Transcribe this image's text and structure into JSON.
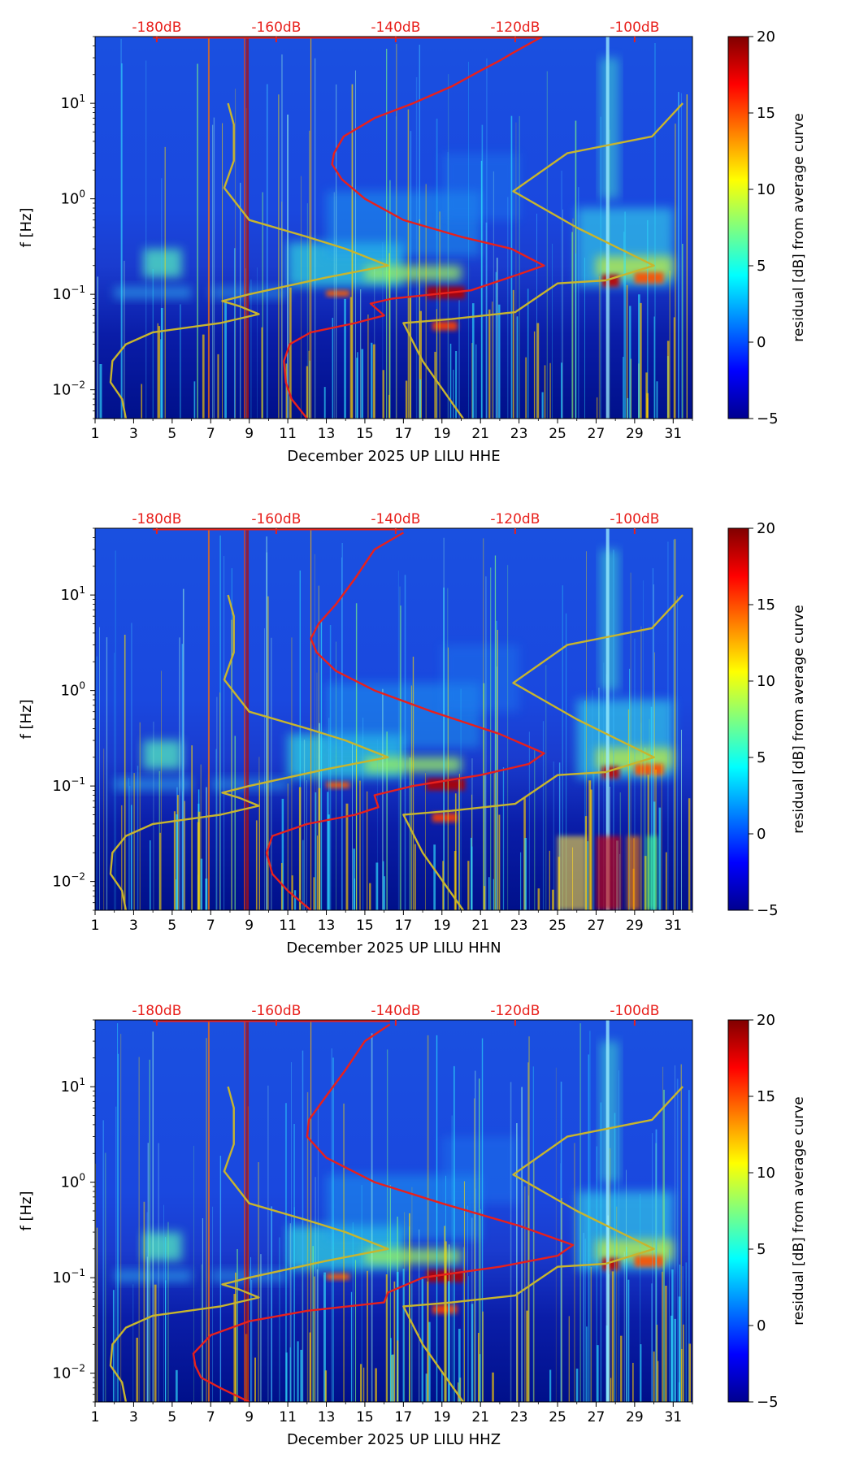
{
  "chart_data": [
    {
      "type": "heatmap",
      "title": "",
      "xlabel": "December 2025 UP LILU  HHE",
      "ylabel": "f [Hz]",
      "x_ticks": [
        "1",
        "3",
        "5",
        "7",
        "9",
        "11",
        "13",
        "15",
        "17",
        "19",
        "21",
        "23",
        "25",
        "27",
        "29",
        "31"
      ],
      "x_range": [
        1,
        32
      ],
      "y_scale": "log",
      "y_range": [
        0.005,
        50
      ],
      "y_ticks": [
        {
          "base": "10",
          "exp": "1",
          "value": 10
        },
        {
          "base": "10",
          "exp": "0",
          "value": 1
        },
        {
          "base": "10",
          "exp": "−1",
          "value": 0.1
        },
        {
          "base": "10",
          "exp": "−2",
          "value": 0.01
        }
      ],
      "top_ticks": [
        "-180dB",
        "-160dB",
        "-140dB",
        "-120dB",
        "-100dB"
      ],
      "top_tick_days": [
        4.2,
        10.4,
        16.6,
        22.8,
        29.0
      ],
      "colorbar": {
        "label": "residual [dB] from average curve",
        "min": -5,
        "max": 20,
        "ticks": [
          "20",
          "15",
          "10",
          "5",
          "0",
          "−5"
        ],
        "tick_values": [
          20,
          15,
          10,
          5,
          0,
          -5
        ]
      },
      "series": [
        {
          "name": "red average PSD curve",
          "color": "#e8201c",
          "points": [
            [
              12.0,
              0.005
            ],
            [
              11.2,
              0.008
            ],
            [
              10.9,
              0.012
            ],
            [
              10.8,
              0.02
            ],
            [
              11.1,
              0.03
            ],
            [
              12.2,
              0.04
            ],
            [
              14.5,
              0.05
            ],
            [
              16.0,
              0.06
            ],
            [
              15.3,
              0.08
            ],
            [
              16.4,
              0.09
            ],
            [
              20.5,
              0.11
            ],
            [
              22.5,
              0.15
            ],
            [
              24.3,
              0.2
            ],
            [
              22.6,
              0.3
            ],
            [
              20.0,
              0.4
            ],
            [
              17.0,
              0.6
            ],
            [
              15.0,
              1.0
            ],
            [
              13.8,
              1.6
            ],
            [
              13.3,
              2.3
            ],
            [
              13.4,
              3.0
            ],
            [
              13.9,
              4.5
            ],
            [
              15.5,
              7.0
            ],
            [
              17.5,
              10.0
            ],
            [
              19.5,
              15.0
            ],
            [
              21.0,
              22.0
            ],
            [
              22.0,
              28.0
            ],
            [
              22.6,
              33.0
            ],
            [
              24.2,
              50.0
            ]
          ]
        },
        {
          "name": "yellow noise model curve (left)",
          "color": "#c8b52d",
          "points": [
            [
              2.6,
              0.005
            ],
            [
              2.4,
              0.008
            ],
            [
              1.8,
              0.012
            ],
            [
              1.9,
              0.02
            ],
            [
              2.6,
              0.03
            ],
            [
              4.0,
              0.04
            ],
            [
              7.5,
              0.05
            ],
            [
              9.5,
              0.062
            ],
            [
              8.5,
              0.075
            ],
            [
              7.6,
              0.085
            ],
            [
              9.0,
              0.1
            ],
            [
              13.0,
              0.15
            ],
            [
              16.2,
              0.2
            ],
            [
              14.0,
              0.3
            ],
            [
              12.0,
              0.4
            ],
            [
              9.0,
              0.6
            ],
            [
              7.7,
              1.3
            ],
            [
              8.2,
              2.5
            ],
            [
              8.2,
              6.0
            ],
            [
              7.9,
              10.0
            ]
          ]
        },
        {
          "name": "yellow noise model curve (right)",
          "color": "#c8b52d",
          "points": [
            [
              20.1,
              0.005
            ],
            [
              18.0,
              0.02
            ],
            [
              17.0,
              0.05
            ],
            [
              19.5,
              0.055
            ],
            [
              22.8,
              0.065
            ],
            [
              25.0,
              0.13
            ],
            [
              27.5,
              0.14
            ],
            [
              30.0,
              0.2
            ],
            [
              26.0,
              0.5
            ],
            [
              22.7,
              1.2
            ],
            [
              25.5,
              3.0
            ],
            [
              29.9,
              4.5
            ],
            [
              31.5,
              10.0
            ]
          ]
        }
      ]
    },
    {
      "type": "heatmap",
      "title": "",
      "xlabel": "December 2025 UP LILU  HHN",
      "ylabel": "f [Hz]",
      "x_ticks": [
        "1",
        "3",
        "5",
        "7",
        "9",
        "11",
        "13",
        "15",
        "17",
        "19",
        "21",
        "23",
        "25",
        "27",
        "29",
        "31"
      ],
      "x_range": [
        1,
        32
      ],
      "y_scale": "log",
      "y_range": [
        0.005,
        50
      ],
      "y_ticks": [
        {
          "base": "10",
          "exp": "1",
          "value": 10
        },
        {
          "base": "10",
          "exp": "0",
          "value": 1
        },
        {
          "base": "10",
          "exp": "−1",
          "value": 0.1
        },
        {
          "base": "10",
          "exp": "−2",
          "value": 0.01
        }
      ],
      "top_ticks": [
        "-180dB",
        "-160dB",
        "-140dB",
        "-120dB",
        "-100dB"
      ],
      "top_tick_days": [
        4.2,
        10.4,
        16.6,
        22.8,
        29.0
      ],
      "colorbar": {
        "label": "residual [dB] from average curve",
        "min": -5,
        "max": 20,
        "ticks": [
          "20",
          "15",
          "10",
          "5",
          "0",
          "−5"
        ],
        "tick_values": [
          20,
          15,
          10,
          5,
          0,
          -5
        ]
      },
      "series": [
        {
          "name": "red average PSD curve",
          "color": "#e8201c",
          "points": [
            [
              12.2,
              0.005
            ],
            [
              11.0,
              0.008
            ],
            [
              10.2,
              0.012
            ],
            [
              9.9,
              0.02
            ],
            [
              10.2,
              0.03
            ],
            [
              12.0,
              0.04
            ],
            [
              14.5,
              0.05
            ],
            [
              15.7,
              0.06
            ],
            [
              15.5,
              0.08
            ],
            [
              17.5,
              0.1
            ],
            [
              21.0,
              0.13
            ],
            [
              23.5,
              0.17
            ],
            [
              24.3,
              0.22
            ],
            [
              22.0,
              0.35
            ],
            [
              18.5,
              0.6
            ],
            [
              15.5,
              1.0
            ],
            [
              13.5,
              1.6
            ],
            [
              12.5,
              2.5
            ],
            [
              12.2,
              3.5
            ],
            [
              12.6,
              5.0
            ],
            [
              13.5,
              8.0
            ],
            [
              14.5,
              15.0
            ],
            [
              15.5,
              30.0
            ],
            [
              17.0,
              45.0
            ]
          ]
        },
        {
          "name": "yellow noise model curve (left)",
          "color": "#c8b52d",
          "points": [
            [
              2.6,
              0.005
            ],
            [
              2.4,
              0.008
            ],
            [
              1.8,
              0.012
            ],
            [
              1.9,
              0.02
            ],
            [
              2.6,
              0.03
            ],
            [
              4.0,
              0.04
            ],
            [
              7.5,
              0.05
            ],
            [
              9.5,
              0.062
            ],
            [
              8.5,
              0.075
            ],
            [
              7.6,
              0.085
            ],
            [
              9.0,
              0.1
            ],
            [
              13.0,
              0.15
            ],
            [
              16.2,
              0.2
            ],
            [
              14.0,
              0.3
            ],
            [
              12.0,
              0.4
            ],
            [
              9.0,
              0.6
            ],
            [
              7.7,
              1.3
            ],
            [
              8.2,
              2.5
            ],
            [
              8.2,
              6.0
            ],
            [
              7.9,
              10.0
            ]
          ]
        },
        {
          "name": "yellow noise model curve (right)",
          "color": "#c8b52d",
          "points": [
            [
              20.1,
              0.005
            ],
            [
              18.0,
              0.02
            ],
            [
              17.0,
              0.05
            ],
            [
              19.5,
              0.055
            ],
            [
              22.8,
              0.065
            ],
            [
              25.0,
              0.13
            ],
            [
              27.5,
              0.14
            ],
            [
              30.0,
              0.2
            ],
            [
              26.0,
              0.5
            ],
            [
              22.7,
              1.2
            ],
            [
              25.5,
              3.0
            ],
            [
              29.9,
              4.5
            ],
            [
              31.5,
              10.0
            ]
          ]
        }
      ]
    },
    {
      "type": "heatmap",
      "title": "",
      "xlabel": "December 2025 UP LILU  HHZ",
      "ylabel": "f [Hz]",
      "x_ticks": [
        "1",
        "3",
        "5",
        "7",
        "9",
        "11",
        "13",
        "15",
        "17",
        "19",
        "21",
        "23",
        "25",
        "27",
        "29",
        "31"
      ],
      "x_range": [
        1,
        32
      ],
      "y_scale": "log",
      "y_range": [
        0.005,
        50
      ],
      "y_ticks": [
        {
          "base": "10",
          "exp": "1",
          "value": 10
        },
        {
          "base": "10",
          "exp": "0",
          "value": 1
        },
        {
          "base": "10",
          "exp": "−1",
          "value": 0.1
        },
        {
          "base": "10",
          "exp": "−2",
          "value": 0.01
        }
      ],
      "top_ticks": [
        "-180dB",
        "-160dB",
        "-140dB",
        "-120dB",
        "-100dB"
      ],
      "top_tick_days": [
        4.2,
        10.4,
        16.6,
        22.8,
        29.0
      ],
      "colorbar": {
        "label": "residual [dB] from average curve",
        "min": -5,
        "max": 20,
        "ticks": [
          "20",
          "15",
          "10",
          "5",
          "0",
          "−5"
        ],
        "tick_values": [
          20,
          15,
          10,
          5,
          0,
          -5
        ]
      },
      "series": [
        {
          "name": "red average PSD curve",
          "color": "#e8201c",
          "points": [
            [
              9.0,
              0.005
            ],
            [
              7.5,
              0.007
            ],
            [
              6.5,
              0.009
            ],
            [
              6.2,
              0.012
            ],
            [
              6.1,
              0.016
            ],
            [
              7.0,
              0.025
            ],
            [
              9.0,
              0.035
            ],
            [
              12.0,
              0.045
            ],
            [
              16.0,
              0.055
            ],
            [
              16.2,
              0.07
            ],
            [
              18.0,
              0.1
            ],
            [
              22.0,
              0.13
            ],
            [
              25.0,
              0.17
            ],
            [
              25.8,
              0.22
            ],
            [
              23.0,
              0.35
            ],
            [
              19.0,
              0.6
            ],
            [
              15.5,
              1.0
            ],
            [
              13.0,
              1.8
            ],
            [
              12.0,
              3.0
            ],
            [
              12.1,
              4.5
            ],
            [
              13.0,
              8.0
            ],
            [
              14.0,
              15.0
            ],
            [
              15.0,
              30.0
            ],
            [
              16.3,
              45.0
            ]
          ]
        },
        {
          "name": "yellow noise model curve (left)",
          "color": "#c8b52d",
          "points": [
            [
              2.6,
              0.005
            ],
            [
              2.4,
              0.008
            ],
            [
              1.8,
              0.012
            ],
            [
              1.9,
              0.02
            ],
            [
              2.6,
              0.03
            ],
            [
              4.0,
              0.04
            ],
            [
              7.5,
              0.05
            ],
            [
              9.5,
              0.062
            ],
            [
              8.5,
              0.075
            ],
            [
              7.6,
              0.085
            ],
            [
              9.0,
              0.1
            ],
            [
              13.0,
              0.15
            ],
            [
              16.2,
              0.2
            ],
            [
              14.0,
              0.3
            ],
            [
              12.0,
              0.4
            ],
            [
              9.0,
              0.6
            ],
            [
              7.7,
              1.3
            ],
            [
              8.2,
              2.5
            ],
            [
              8.2,
              6.0
            ],
            [
              7.9,
              10.0
            ]
          ]
        },
        {
          "name": "yellow noise model curve (right)",
          "color": "#c8b52d",
          "points": [
            [
              20.1,
              0.005
            ],
            [
              18.0,
              0.02
            ],
            [
              17.0,
              0.05
            ],
            [
              19.5,
              0.055
            ],
            [
              22.8,
              0.065
            ],
            [
              25.0,
              0.13
            ],
            [
              27.5,
              0.14
            ],
            [
              30.0,
              0.2
            ],
            [
              26.0,
              0.5
            ],
            [
              22.7,
              1.2
            ],
            [
              25.5,
              3.0
            ],
            [
              29.9,
              4.5
            ],
            [
              31.5,
              10.0
            ]
          ]
        }
      ]
    }
  ]
}
